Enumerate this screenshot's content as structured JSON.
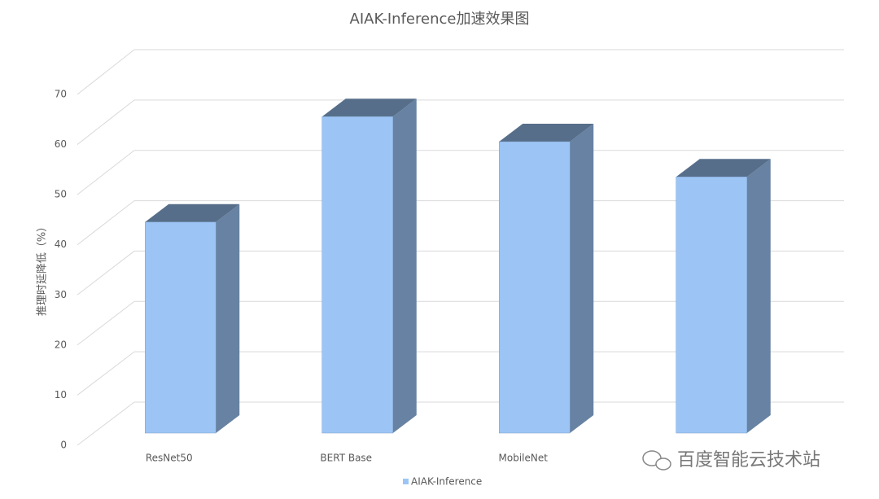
{
  "chart_data": {
    "type": "bar3d",
    "title": "AIAK-Inference加速效果图",
    "y_label": "推理时延降低（%）",
    "categories": [
      "ResNet50",
      "BERT Base",
      "MobileNet",
      null
    ],
    "series": [
      {
        "name": "AIAK-Inference",
        "color": "#9cc5f6",
        "values": [
          42,
          63,
          58,
          51
        ]
      }
    ],
    "ylim": [
      0,
      70
    ],
    "yticks": [
      0,
      10,
      20,
      30,
      40,
      50,
      60,
      70
    ],
    "grid": true,
    "watermark": "百度智能云技术站"
  }
}
